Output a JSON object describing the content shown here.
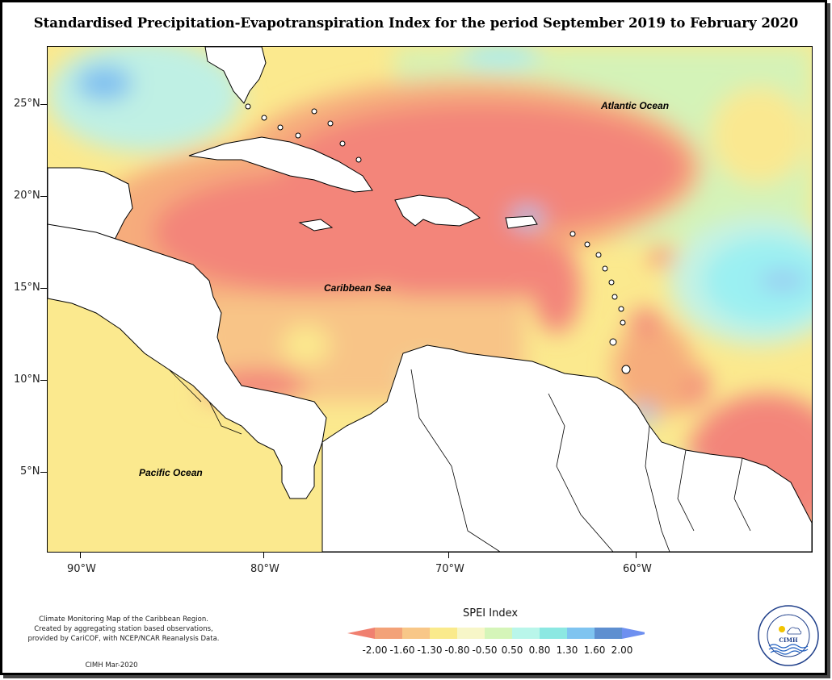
{
  "title": "Standardised Precipitation-Evapotranspiration Index for the period September 2019 to February 2020",
  "map": {
    "ocean_labels": [
      "Atlantic Ocean",
      "Caribbean Sea",
      "Pacific Ocean"
    ],
    "lat_labels": [
      "25°N",
      "20°N",
      "15°N",
      "10°N",
      "5°N"
    ],
    "lon_labels": [
      "90°W",
      "80°W",
      "70°W",
      "60°W"
    ]
  },
  "legend": {
    "title": "SPEI Index",
    "ticks": [
      "-2.00",
      "-1.60",
      "-1.30",
      "-0.80",
      "-0.50",
      "0.50",
      "0.80",
      "1.30",
      "1.60",
      "2.00"
    ],
    "colors": [
      "#f08070",
      "#f3a278",
      "#f8c788",
      "#faea8c",
      "#f7f6c8",
      "#d5f5b9",
      "#b9f6ea",
      "#8ce8e2",
      "#7fc4f0",
      "#5e8fd0",
      "#6e90f0"
    ]
  },
  "footer": {
    "description_lines": [
      "Climate Monitoring Map of the Caribbean Region.",
      "Created by aggregating station based observations,",
      "provided by CariCOF, with NCEP/NCAR Reanalysis Data."
    ],
    "credit": "CIMH Mar-2020"
  },
  "logo": {
    "ring_text": "Caribbean Institute for Meteorology and Hydrology",
    "center_text": "CIMH"
  }
}
